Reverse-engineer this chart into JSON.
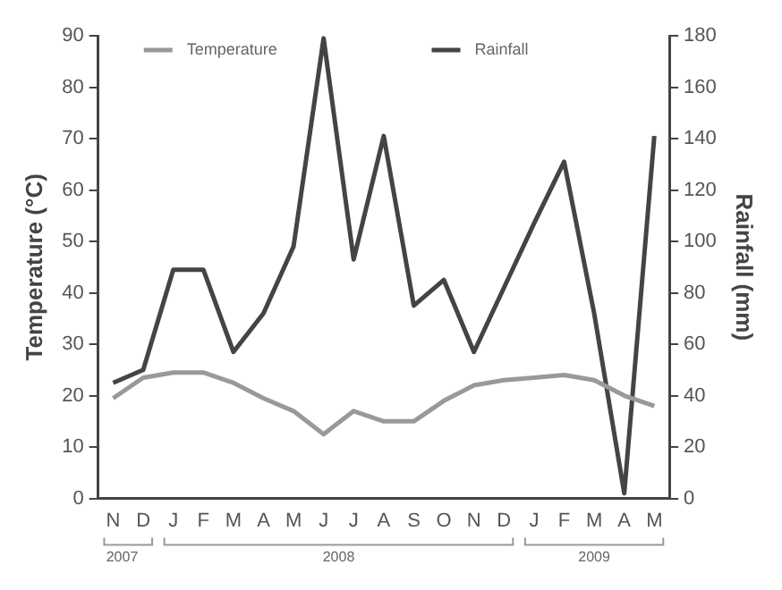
{
  "chart_data": {
    "type": "line",
    "categories": [
      "N",
      "D",
      "J",
      "F",
      "M",
      "A",
      "M",
      "J",
      "J",
      "A",
      "S",
      "O",
      "N",
      "D",
      "J",
      "F",
      "M",
      "A",
      "M"
    ],
    "series": [
      {
        "name": "Temperature",
        "color": "#999999",
        "values": [
          19.5,
          23.5,
          24.5,
          24.5,
          22.5,
          19.5,
          17,
          12.5,
          17,
          15,
          15,
          19,
          22,
          23,
          23.5,
          24,
          23,
          20,
          18
        ]
      },
      {
        "name": "Rainfall",
        "color": "#444444",
        "axis": "y2",
        "values": [
          45,
          50,
          89,
          89,
          57,
          72,
          98,
          179,
          93,
          141,
          75,
          85,
          57,
          82,
          107,
          131,
          72,
          2,
          141
        ]
      }
    ],
    "ylabel": "Temperature (°C)",
    "y2label": "Rainfall (mm)",
    "ylim": [
      0,
      90
    ],
    "yticks": [
      0,
      10,
      20,
      30,
      40,
      50,
      60,
      70,
      80,
      90
    ],
    "y2lim": [
      0,
      180
    ],
    "y2ticks": [
      0,
      20,
      40,
      60,
      80,
      100,
      120,
      140,
      160,
      180
    ],
    "annotations": [
      "2007",
      "2008",
      "2009"
    ],
    "grid": false,
    "legend": "top",
    "marker": "none",
    "line_style": "solid"
  }
}
